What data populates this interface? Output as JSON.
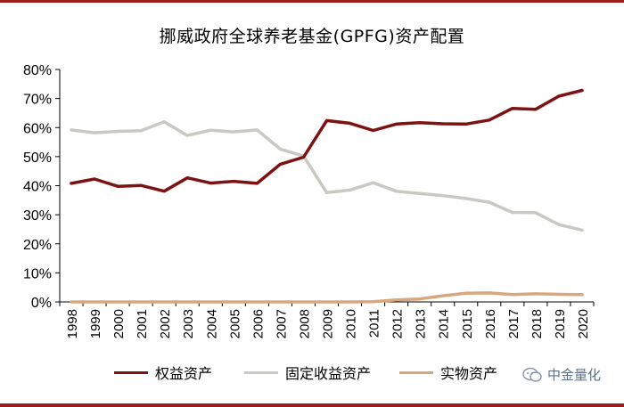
{
  "chart_data": {
    "type": "line",
    "title": "挪威政府全球养老基金(GPFG)资产配置",
    "xlabel": "",
    "ylabel": "",
    "ylim": [
      0,
      80
    ],
    "yticks": [
      "0%",
      "10%",
      "20%",
      "30%",
      "40%",
      "50%",
      "60%",
      "70%",
      "80%"
    ],
    "x": [
      "1998",
      "1999",
      "2000",
      "2001",
      "2002",
      "2003",
      "2004",
      "2005",
      "2006",
      "2007",
      "2008",
      "2009",
      "2010",
      "2011",
      "2012",
      "2013",
      "2014",
      "2015",
      "2016",
      "2017",
      "2018",
      "2019",
      "2020"
    ],
    "series": [
      {
        "name": "权益资产",
        "color": "#7d1212",
        "values": [
          40.8,
          42.3,
          39.8,
          40.1,
          38.1,
          42.7,
          40.9,
          41.5,
          40.8,
          47.4,
          49.8,
          62.4,
          61.5,
          59.0,
          61.2,
          61.7,
          61.3,
          61.2,
          62.6,
          66.6,
          66.3,
          70.8,
          72.8
        ]
      },
      {
        "name": "固定收益资产",
        "color": "#c9c9c4",
        "values": [
          59.2,
          58.2,
          58.7,
          58.9,
          62.0,
          57.3,
          59.1,
          58.5,
          59.2,
          52.6,
          50.2,
          37.6,
          38.5,
          41.0,
          38.1,
          37.3,
          36.6,
          35.6,
          34.3,
          30.8,
          30.7,
          26.6,
          24.7
        ]
      },
      {
        "name": "实物资产",
        "color": "#d8a77d",
        "values": [
          0,
          0,
          0,
          0,
          0,
          0,
          0,
          0,
          0,
          0,
          0,
          0,
          0,
          0.1,
          0.7,
          1.0,
          2.1,
          3.0,
          3.1,
          2.5,
          2.8,
          2.6,
          2.5
        ]
      }
    ],
    "legend_position": "bottom"
  },
  "watermark": {
    "text": "中金量化",
    "icon": "wechat-bubble-icon"
  }
}
